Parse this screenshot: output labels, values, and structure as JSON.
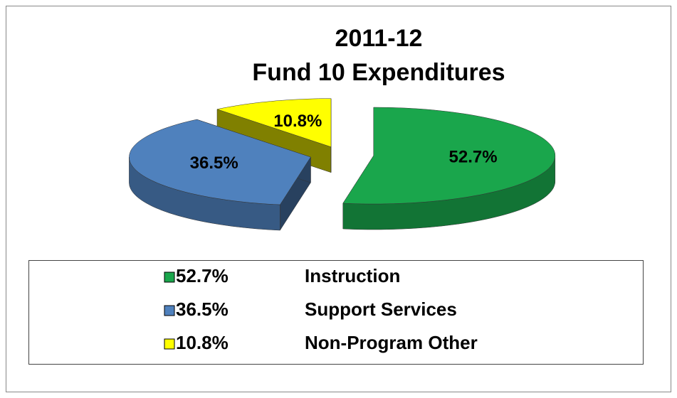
{
  "chart_data": {
    "type": "pie3d",
    "title": [
      "2011-12",
      "Fund 10 Expenditures"
    ],
    "categories": [
      "Instruction",
      "Support Services",
      "Non-Program Other"
    ],
    "values": [
      52.7,
      36.5,
      10.8
    ],
    "value_labels": [
      "52.7%",
      "36.5%",
      "10.8%"
    ],
    "colors": [
      "#1aa64c",
      "#4f81bd",
      "#ffff00"
    ],
    "legend": "bottom"
  }
}
